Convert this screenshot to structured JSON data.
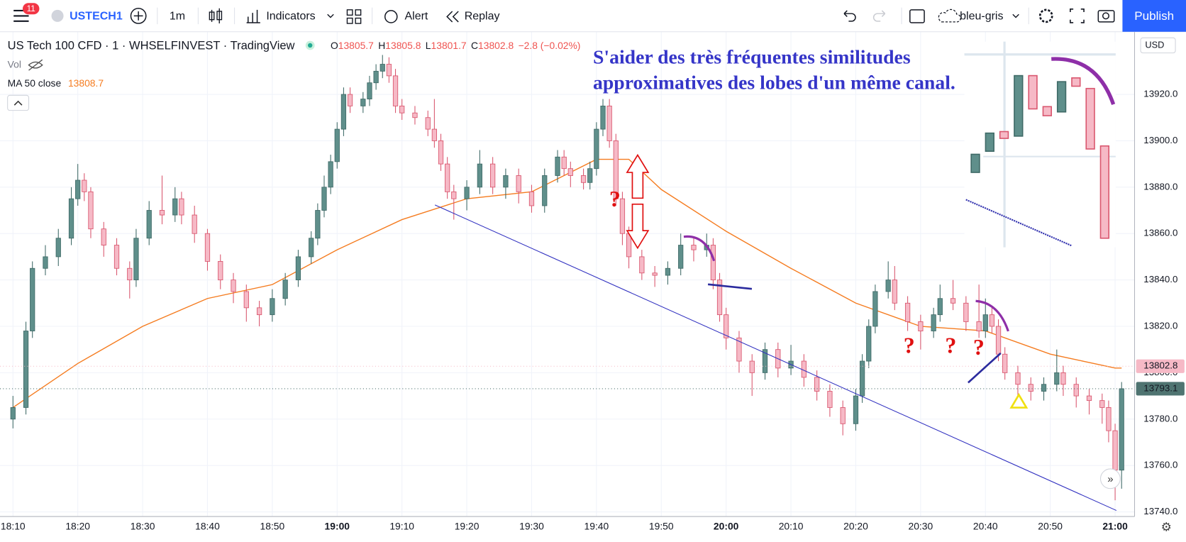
{
  "toolbar": {
    "badge": "11",
    "symbol": "USTECH1",
    "interval": "1m",
    "indicators": "Indicators",
    "alert": "Alert",
    "replay": "Replay",
    "layout": "bleu-gris",
    "publish": "Publish"
  },
  "legend": {
    "title": "US Tech 100 CFD · 1 · WHSELFINVEST · TradingView",
    "ohlc": [
      [
        "O",
        "13805.7"
      ],
      [
        "H",
        "13805.8"
      ],
      [
        "L",
        "13801.7"
      ],
      [
        "C",
        "13802.8"
      ]
    ],
    "change": "−2.8 (−0.02%)",
    "vol": "Vol",
    "ma_name": "MA 50 close",
    "ma_value": "13808.7"
  },
  "annotations": {
    "text": [
      "S'aider des très fréquentes similitudes",
      "approximatives des lobes d'un même canal."
    ],
    "questions": [
      "?",
      "?",
      "?",
      "?"
    ]
  },
  "currency": "USD",
  "chart_data": {
    "type": "candlestick",
    "xlim": [
      "18:08",
      "21:03"
    ],
    "xticks": [
      "18:10",
      "18:20",
      "18:30",
      "18:40",
      "18:50",
      "19:00",
      "19:10",
      "19:20",
      "19:30",
      "19:40",
      "19:50",
      "20:00",
      "20:10",
      "20:20",
      "20:30",
      "20:40",
      "20:50",
      "21:00"
    ],
    "ylim": [
      13738,
      13947
    ],
    "yticks": [
      {
        "value": 13740,
        "label": "13740.0"
      },
      {
        "value": 13760,
        "label": "13760.0"
      },
      {
        "value": 13780,
        "label": "13780.0"
      },
      {
        "value": 13800,
        "label": "13800.0"
      },
      {
        "value": 13820,
        "label": "13820.0"
      },
      {
        "value": 13840,
        "label": "13840.0"
      },
      {
        "value": 13860,
        "label": "13860.0"
      },
      {
        "value": 13880,
        "label": "13880.0"
      },
      {
        "value": 13900,
        "label": "13900.0"
      },
      {
        "value": 13920,
        "label": "13920.0"
      }
    ],
    "grid": true,
    "up_color": "#5f8f8b",
    "down_color": "#f6b9c6",
    "x": [
      "18:10",
      "18:12",
      "18:13",
      "18:15",
      "18:17",
      "18:19",
      "18:20",
      "18:21",
      "18:22",
      "18:24",
      "18:26",
      "18:28",
      "18:29",
      "18:31",
      "18:33",
      "18:35",
      "18:36",
      "18:38",
      "18:40",
      "18:42",
      "18:44",
      "18:46",
      "18:48",
      "18:50",
      "18:52",
      "18:54",
      "18:56",
      "18:57",
      "18:58",
      "18:59",
      "19:00",
      "19:01",
      "19:02",
      "19:04",
      "19:05",
      "19:06",
      "19:07",
      "19:08",
      "19:09",
      "19:10",
      "19:12",
      "19:14",
      "19:15",
      "19:16",
      "19:17",
      "19:18",
      "19:20",
      "19:22",
      "19:24",
      "19:26",
      "19:28",
      "19:30",
      "19:32",
      "19:34",
      "19:35",
      "19:36",
      "19:38",
      "19:39",
      "19:40",
      "19:41",
      "19:42",
      "19:43",
      "19:44",
      "19:45",
      "19:47",
      "19:49",
      "19:51",
      "19:53",
      "19:55",
      "19:57",
      "19:58",
      "19:59",
      "20:00",
      "20:02",
      "20:04",
      "20:06",
      "20:08",
      "20:10",
      "20:12",
      "20:14",
      "20:16",
      "20:18",
      "20:20",
      "20:21",
      "20:22",
      "20:23",
      "20:25",
      "20:26",
      "20:28",
      "20:30",
      "20:32",
      "20:33",
      "20:35",
      "20:37",
      "20:39",
      "20:40",
      "20:41",
      "20:42",
      "20:43",
      "20:45",
      "20:47",
      "20:49",
      "20:51",
      "20:52",
      "20:54",
      "20:56",
      "20:58",
      "20:59",
      "21:00",
      "21:01"
    ],
    "open": [
      13780,
      13785,
      13818,
      13845,
      13850,
      13858,
      13875,
      13883,
      13878,
      13862,
      13855,
      13845,
      13840,
      13858,
      13870,
      13868,
      13875,
      13868,
      13860,
      13848,
      13840,
      13835,
      13828,
      13825,
      13832,
      13840,
      13850,
      13858,
      13870,
      13880,
      13891,
      13905,
      13920,
      13915,
      13918,
      13925,
      13930,
      13933,
      13928,
      13915,
      13912,
      13910,
      13905,
      13900,
      13890,
      13878,
      13875,
      13880,
      13890,
      13880,
      13885,
      13878,
      13872,
      13885,
      13893,
      13888,
      13885,
      13882,
      13888,
      13905,
      13915,
      13900,
      13875,
      13860,
      13850,
      13843,
      13842,
      13845,
      13855,
      13853,
      13855,
      13840,
      13825,
      13815,
      13805,
      13800,
      13810,
      13802,
      13805,
      13798,
      13792,
      13785,
      13778,
      13790,
      13805,
      13820,
      13835,
      13840,
      13830,
      13822,
      13818,
      13825,
      13832,
      13830,
      13822,
      13818,
      13825,
      13820,
      13808,
      13800,
      13795,
      13792,
      13795,
      13800,
      13795,
      13790,
      13788,
      13785,
      13775,
      13758
    ],
    "high": [
      13790,
      13822,
      13848,
      13855,
      13862,
      13880,
      13890,
      13886,
      13880,
      13865,
      13858,
      13848,
      13862,
      13874,
      13885,
      13880,
      13878,
      13872,
      13862,
      13851,
      13843,
      13838,
      13831,
      13836,
      13843,
      13853,
      13861,
      13873,
      13885,
      13894,
      13908,
      13923,
      13923,
      13921,
      13928,
      13933,
      13937,
      13936,
      13931,
      13918,
      13915,
      13913,
      13918,
      13903,
      13893,
      13881,
      13883,
      13896,
      13893,
      13888,
      13888,
      13881,
      13888,
      13896,
      13896,
      13891,
      13888,
      13891,
      13908,
      13918,
      13918,
      13903,
      13878,
      13863,
      13853,
      13846,
      13848,
      13860,
      13858,
      13860,
      13858,
      13843,
      13828,
      13818,
      13808,
      13813,
      13813,
      13812,
      13808,
      13801,
      13795,
      13788,
      13793,
      13808,
      13823,
      13838,
      13848,
      13846,
      13833,
      13825,
      13828,
      13838,
      13840,
      13833,
      13838,
      13832,
      13828,
      13823,
      13811,
      13803,
      13798,
      13798,
      13810,
      13803,
      13798,
      13793,
      13791,
      13788,
      13778,
      13796
    ],
    "low": [
      13776,
      13782,
      13815,
      13842,
      13846,
      13855,
      13872,
      13874,
      13858,
      13850,
      13842,
      13832,
      13837,
      13855,
      13864,
      13865,
      13864,
      13856,
      13844,
      13836,
      13830,
      13822,
      13820,
      13822,
      13829,
      13837,
      13847,
      13855,
      13867,
      13877,
      13888,
      13902,
      13912,
      13912,
      13915,
      13922,
      13927,
      13925,
      13912,
      13909,
      13907,
      13902,
      13897,
      13887,
      13875,
      13866,
      13870,
      13877,
      13877,
      13875,
      13873,
      13869,
      13869,
      13882,
      13885,
      13880,
      13879,
      13879,
      13885,
      13902,
      13897,
      13872,
      13855,
      13845,
      13840,
      13837,
      13838,
      13842,
      13848,
      13850,
      13836,
      13822,
      13810,
      13800,
      13790,
      13797,
      13798,
      13799,
      13794,
      13788,
      13781,
      13773,
      13775,
      13787,
      13802,
      13817,
      13832,
      13827,
      13818,
      13810,
      13815,
      13822,
      13827,
      13818,
      13815,
      13815,
      13817,
      13805,
      13797,
      13790,
      13788,
      13788,
      13792,
      13790,
      13785,
      13782,
      13778,
      13770,
      13745,
      13750
    ],
    "close": [
      13785,
      13818,
      13845,
      13850,
      13858,
      13875,
      13883,
      13878,
      13862,
      13855,
      13845,
      13840,
      13858,
      13870,
      13868,
      13875,
      13868,
      13860,
      13848,
      13840,
      13835,
      13828,
      13825,
      13832,
      13840,
      13850,
      13858,
      13870,
      13880,
      13891,
      13905,
      13920,
      13915,
      13918,
      13925,
      13930,
      13933,
      13928,
      13915,
      13912,
      13910,
      13905,
      13900,
      13890,
      13878,
      13875,
      13880,
      13890,
      13880,
      13885,
      13878,
      13872,
      13885,
      13893,
      13888,
      13885,
      13882,
      13888,
      13905,
      13915,
      13900,
      13875,
      13860,
      13850,
      13843,
      13842,
      13845,
      13855,
      13853,
      13855,
      13840,
      13825,
      13815,
      13805,
      13800,
      13810,
      13802,
      13805,
      13798,
      13792,
      13785,
      13778,
      13790,
      13805,
      13820,
      13835,
      13840,
      13830,
      13822,
      13818,
      13825,
      13832,
      13830,
      13822,
      13818,
      13825,
      13820,
      13808,
      13800,
      13795,
      13792,
      13795,
      13800,
      13795,
      13790,
      13788,
      13785,
      13775,
      13758,
      13793.1
    ],
    "ma": {
      "name": "MA 50 close",
      "color": "#f57c20",
      "x": [
        "18:10",
        "18:20",
        "18:30",
        "18:40",
        "18:50",
        "19:00",
        "19:10",
        "19:20",
        "19:30",
        "19:40",
        "19:45",
        "19:50",
        "20:00",
        "20:10",
        "20:20",
        "20:30",
        "20:40",
        "20:50",
        "21:00",
        "21:01"
      ],
      "values": [
        13785,
        13804,
        13820,
        13832,
        13838,
        13853,
        13866,
        13875,
        13878,
        13892,
        13892,
        13879,
        13861,
        13845,
        13830,
        13820,
        13818,
        13808,
        13802,
        13802
      ]
    },
    "price_labels": [
      {
        "value": 13802.8,
        "color": "#f6b9c6",
        "text_color": "#131722"
      },
      {
        "value": 13793.1,
        "color": "#4f7471",
        "text_color": "#ffffff"
      }
    ]
  }
}
